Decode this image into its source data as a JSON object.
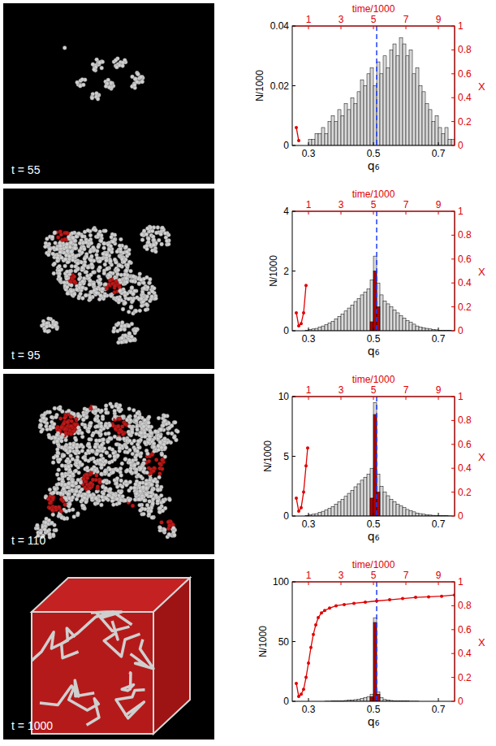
{
  "chart_data": [
    {
      "type": "histogram",
      "snapshot_label": "t = 55",
      "x_label": "q₆",
      "y_label": "N/1000",
      "x2_label": "time/1000",
      "y2_label": "X",
      "stacked": false,
      "bins": [
        0.25,
        0.26,
        0.27,
        0.28,
        0.29,
        0.3,
        0.31,
        0.32,
        0.33,
        0.34,
        0.35,
        0.36,
        0.37,
        0.38,
        0.39,
        0.4,
        0.41,
        0.42,
        0.43,
        0.44,
        0.45,
        0.46,
        0.47,
        0.48,
        0.49,
        0.5,
        0.51,
        0.52,
        0.53,
        0.54,
        0.55,
        0.56,
        0.57,
        0.58,
        0.59,
        0.6,
        0.61,
        0.62,
        0.63,
        0.64,
        0.65,
        0.66,
        0.67,
        0.68,
        0.69,
        0.7,
        0.71,
        0.72,
        0.73,
        0.74,
        0.75
      ],
      "xlim": [
        0.25,
        0.75
      ],
      "xticks": [
        0.3,
        0.5,
        0.7
      ],
      "ylim": [
        0,
        0.04
      ],
      "yticks": [
        0,
        0.02,
        0.04
      ],
      "x2lim": [
        0,
        10
      ],
      "x2ticks": [
        1,
        3,
        5,
        7,
        9
      ],
      "y2lim": [
        0,
        1
      ],
      "y2ticks": [
        0,
        0.2,
        0.4,
        0.6,
        0.8,
        1
      ],
      "reference_line": {
        "x": 0.51,
        "color": "#1f3fff",
        "line_style": "dashed"
      },
      "series": [
        {
          "type": "bar",
          "color": "#d9d9d9",
          "values": [
            0,
            0,
            0,
            0,
            0,
            0.002,
            0.002,
            0.004,
            0.004,
            0.006,
            0.004,
            0.008,
            0.01,
            0.008,
            0.012,
            0.01,
            0.014,
            0.012,
            0.016,
            0.014,
            0.018,
            0.022,
            0.02,
            0.024,
            0.026,
            0.02,
            0.028,
            0.024,
            0.03,
            0.026,
            0.032,
            0.034,
            0.03,
            0.036,
            0.034,
            0.03,
            0.032,
            0.024,
            0.026,
            0.02,
            0.018,
            0.014,
            0.012,
            0.008,
            0.01,
            0.006,
            0.004,
            0.006,
            0.002,
            0.002
          ]
        },
        {
          "type": "bar",
          "color": "#b00000",
          "values": [
            0,
            0,
            0,
            0,
            0,
            0,
            0,
            0,
            0,
            0,
            0,
            0,
            0,
            0,
            0,
            0,
            0,
            0,
            0,
            0,
            0,
            0,
            0,
            0,
            0,
            0,
            0,
            0,
            0,
            0,
            0,
            0,
            0,
            0,
            0,
            0,
            0,
            0,
            0,
            0,
            0,
            0,
            0,
            0,
            0,
            0,
            0,
            0,
            0,
            0
          ]
        },
        {
          "type": "line",
          "axis": "y2",
          "color": "#e00000",
          "marker": "circle",
          "x": [
            0.25,
            0.4
          ],
          "values": [
            0.15,
            0.04
          ]
        }
      ]
    },
    {
      "type": "histogram",
      "snapshot_label": "t = 95",
      "x_label": "q₆",
      "y_label": "N/1000",
      "x2_label": "time/1000",
      "y2_label": "X",
      "stacked": false,
      "bins": [
        0.25,
        0.26,
        0.27,
        0.28,
        0.29,
        0.3,
        0.31,
        0.32,
        0.33,
        0.34,
        0.35,
        0.36,
        0.37,
        0.38,
        0.39,
        0.4,
        0.41,
        0.42,
        0.43,
        0.44,
        0.45,
        0.46,
        0.47,
        0.48,
        0.49,
        0.5,
        0.51,
        0.52,
        0.53,
        0.54,
        0.55,
        0.56,
        0.57,
        0.58,
        0.59,
        0.6,
        0.61,
        0.62,
        0.63,
        0.64,
        0.65,
        0.66,
        0.67,
        0.68,
        0.69,
        0.7,
        0.71,
        0.72,
        0.73,
        0.74,
        0.75
      ],
      "xlim": [
        0.25,
        0.75
      ],
      "xticks": [
        0.3,
        0.5,
        0.7
      ],
      "ylim": [
        0,
        4
      ],
      "yticks": [
        0,
        2,
        4
      ],
      "x2lim": [
        0,
        10
      ],
      "x2ticks": [
        1,
        3,
        5,
        7,
        9
      ],
      "y2lim": [
        0,
        1
      ],
      "y2ticks": [
        0,
        0.2,
        0.4,
        0.6,
        0.8,
        1
      ],
      "reference_line": {
        "x": 0.51,
        "color": "#1f3fff",
        "line_style": "dashed"
      },
      "series": [
        {
          "type": "bar",
          "color": "#d9d9d9",
          "values": [
            0,
            0,
            0,
            0,
            0.02,
            0.04,
            0.06,
            0.08,
            0.12,
            0.16,
            0.2,
            0.26,
            0.32,
            0.4,
            0.48,
            0.56,
            0.66,
            0.76,
            0.86,
            0.98,
            1.08,
            1.2,
            1.3,
            1.4,
            1.7,
            2.5,
            1.6,
            1.2,
            1,
            0.9,
            0.8,
            0.7,
            0.6,
            0.5,
            0.42,
            0.34,
            0.28,
            0.22,
            0.16,
            0.12,
            0.1,
            0.08,
            0.06,
            0.04,
            0.03,
            0.02,
            0.02,
            0.01,
            0.01,
            0
          ]
        },
        {
          "type": "bar",
          "color": "#b00000",
          "values": [
            0,
            0,
            0,
            0,
            0,
            0,
            0,
            0,
            0,
            0,
            0,
            0,
            0,
            0,
            0,
            0,
            0,
            0,
            0,
            0,
            0,
            0,
            0,
            0,
            0.3,
            2,
            0.8,
            0,
            0,
            0,
            0,
            0,
            0,
            0,
            0,
            0,
            0,
            0,
            0,
            0,
            0,
            0,
            0,
            0,
            0,
            0,
            0,
            0,
            0,
            0
          ]
        },
        {
          "type": "line",
          "axis": "y2",
          "color": "#e00000",
          "marker": "circle",
          "x": [
            0.25,
            0.4,
            0.55,
            0.7,
            0.85
          ],
          "values": [
            0.15,
            0.04,
            0.06,
            0.15,
            0.38
          ]
        }
      ]
    },
    {
      "type": "histogram",
      "snapshot_label": "t = 110",
      "x_label": "q₆",
      "y_label": "N/1000",
      "x2_label": "time/1000",
      "y2_label": "X",
      "stacked": false,
      "bins": [
        0.25,
        0.26,
        0.27,
        0.28,
        0.29,
        0.3,
        0.31,
        0.32,
        0.33,
        0.34,
        0.35,
        0.36,
        0.37,
        0.38,
        0.39,
        0.4,
        0.41,
        0.42,
        0.43,
        0.44,
        0.45,
        0.46,
        0.47,
        0.48,
        0.49,
        0.5,
        0.51,
        0.52,
        0.53,
        0.54,
        0.55,
        0.56,
        0.57,
        0.58,
        0.59,
        0.6,
        0.61,
        0.62,
        0.63,
        0.64,
        0.65,
        0.66,
        0.67,
        0.68,
        0.69,
        0.7,
        0.71,
        0.72,
        0.73,
        0.74,
        0.75
      ],
      "xlim": [
        0.25,
        0.75
      ],
      "xticks": [
        0.3,
        0.5,
        0.7
      ],
      "ylim": [
        0,
        10
      ],
      "yticks": [
        0,
        5,
        10
      ],
      "x2lim": [
        0,
        10
      ],
      "x2ticks": [
        1,
        3,
        5,
        7,
        9
      ],
      "y2lim": [
        0,
        1
      ],
      "y2ticks": [
        0,
        0.2,
        0.4,
        0.6,
        0.8,
        1
      ],
      "reference_line": {
        "x": 0.51,
        "color": "#1f3fff",
        "line_style": "dashed"
      },
      "series": [
        {
          "type": "bar",
          "color": "#d9d9d9",
          "values": [
            0,
            0,
            0,
            0,
            0.05,
            0.1,
            0.15,
            0.2,
            0.3,
            0.4,
            0.5,
            0.65,
            0.8,
            1,
            1.2,
            1.4,
            1.65,
            1.9,
            2.15,
            2.45,
            2.7,
            3,
            3.25,
            3.5,
            4,
            9.5,
            3.5,
            2.5,
            2,
            1.7,
            1.4,
            1.2,
            1,
            0.85,
            0.7,
            0.55,
            0.45,
            0.35,
            0.25,
            0.2,
            0.15,
            0.12,
            0.08,
            0.06,
            0.05,
            0.03,
            0.02,
            0.02,
            0.01,
            0
          ]
        },
        {
          "type": "bar",
          "color": "#b00000",
          "values": [
            0,
            0,
            0,
            0,
            0,
            0,
            0,
            0,
            0,
            0,
            0,
            0,
            0,
            0,
            0,
            0,
            0,
            0,
            0,
            0,
            0,
            0,
            0,
            0,
            1.5,
            8.5,
            2,
            0,
            0,
            0,
            0,
            0,
            0,
            0,
            0,
            0,
            0,
            0,
            0,
            0,
            0,
            0,
            0,
            0,
            0,
            0,
            0,
            0,
            0,
            0
          ]
        },
        {
          "type": "line",
          "axis": "y2",
          "color": "#e00000",
          "marker": "circle",
          "x": [
            0.25,
            0.4,
            0.55,
            0.7,
            0.85,
            0.95
          ],
          "values": [
            0.15,
            0.04,
            0.07,
            0.2,
            0.42,
            0.57
          ]
        }
      ]
    },
    {
      "type": "histogram",
      "snapshot_label": "t = 1000",
      "x_label": "q₆",
      "y_label": "N/1000",
      "x2_label": "time/1000",
      "y2_label": "X",
      "stacked": false,
      "bins": [
        0.25,
        0.26,
        0.27,
        0.28,
        0.29,
        0.3,
        0.31,
        0.32,
        0.33,
        0.34,
        0.35,
        0.36,
        0.37,
        0.38,
        0.39,
        0.4,
        0.41,
        0.42,
        0.43,
        0.44,
        0.45,
        0.46,
        0.47,
        0.48,
        0.49,
        0.5,
        0.51,
        0.52,
        0.53,
        0.54,
        0.55,
        0.56,
        0.57,
        0.58,
        0.59,
        0.6,
        0.61,
        0.62,
        0.63,
        0.64,
        0.65,
        0.66,
        0.67,
        0.68,
        0.69,
        0.7,
        0.71,
        0.72,
        0.73,
        0.74,
        0.75
      ],
      "xlim": [
        0.25,
        0.75
      ],
      "xticks": [
        0.3,
        0.5,
        0.7
      ],
      "ylim": [
        0,
        100
      ],
      "yticks": [
        0,
        50,
        100
      ],
      "x2lim": [
        0,
        10
      ],
      "x2ticks": [
        1,
        3,
        5,
        7,
        9
      ],
      "y2lim": [
        0,
        1
      ],
      "y2ticks": [
        0,
        0.2,
        0.4,
        0.6,
        0.8,
        1
      ],
      "reference_line": {
        "x": 0.51,
        "color": "#1f3fff",
        "line_style": "dashed"
      },
      "series": [
        {
          "type": "bar",
          "color": "#d9d9d9",
          "values": [
            0,
            0,
            0,
            0,
            0,
            0,
            0,
            0,
            0,
            0,
            0.1,
            0.1,
            0.2,
            0.3,
            0.4,
            0.5,
            0.7,
            0.9,
            1.1,
            1.4,
            1.8,
            2.3,
            3,
            4,
            6,
            70,
            8,
            3,
            1.5,
            1,
            0.7,
            0.5,
            0.4,
            0.3,
            0.2,
            0.2,
            0.1,
            0.1,
            0.1,
            0,
            0,
            0,
            0,
            0,
            0,
            0,
            0,
            0,
            0,
            0
          ]
        },
        {
          "type": "bar",
          "color": "#b00000",
          "values": [
            0,
            0,
            0,
            0,
            0,
            0,
            0,
            0,
            0,
            0,
            0,
            0,
            0,
            0,
            0,
            0,
            0,
            0,
            0,
            0,
            0,
            0,
            0,
            0,
            4,
            66,
            6,
            0,
            0,
            0,
            0,
            0,
            0,
            0,
            0,
            0,
            0,
            0,
            0,
            0,
            0,
            0,
            0,
            0,
            0,
            0,
            0,
            0,
            0,
            0
          ]
        },
        {
          "type": "line",
          "axis": "y2",
          "color": "#e00000",
          "marker": "circle",
          "x": [
            0.25,
            0.4,
            0.55,
            0.7,
            0.85,
            1,
            1.15,
            1.3,
            1.45,
            1.6,
            1.8,
            2,
            2.3,
            2.7,
            3.2,
            3.8,
            4.5,
            5.2,
            6,
            6.8,
            7.6,
            8.4,
            9.2,
            10
          ],
          "values": [
            0.15,
            0.04,
            0.06,
            0.1,
            0.2,
            0.32,
            0.45,
            0.56,
            0.64,
            0.7,
            0.74,
            0.76,
            0.78,
            0.8,
            0.81,
            0.82,
            0.83,
            0.84,
            0.85,
            0.86,
            0.87,
            0.875,
            0.88,
            0.89
          ]
        }
      ]
    }
  ]
}
